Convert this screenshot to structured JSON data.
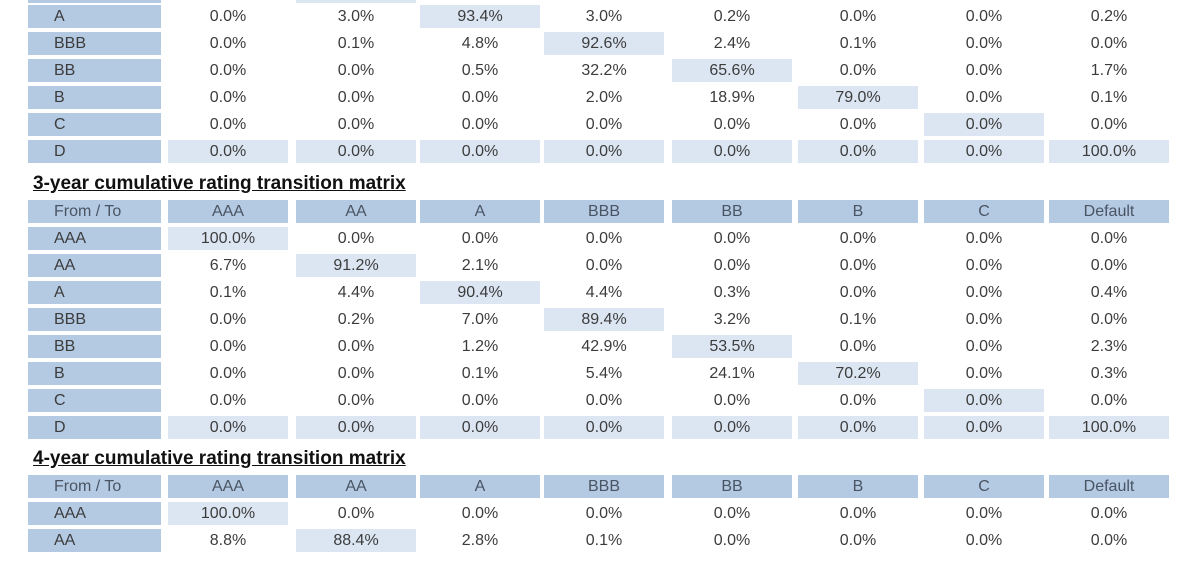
{
  "colors": {
    "header_bg": "#b4c9e2",
    "diagonal_bg": "#dce6f2",
    "text": "#3c3c3c",
    "title": "#111111"
  },
  "matrix2_partial": {
    "rows": [
      {
        "label": "A",
        "values": [
          "0.0%",
          "3.0%",
          "93.4%",
          "3.0%",
          "0.2%",
          "0.0%",
          "0.0%",
          "0.2%"
        ],
        "diag": 2
      },
      {
        "label": "BBB",
        "values": [
          "0.0%",
          "0.1%",
          "4.8%",
          "92.6%",
          "2.4%",
          "0.1%",
          "0.0%",
          "0.0%"
        ],
        "diag": 3
      },
      {
        "label": "BB",
        "values": [
          "0.0%",
          "0.0%",
          "0.5%",
          "32.2%",
          "65.6%",
          "0.0%",
          "0.0%",
          "1.7%"
        ],
        "diag": 4
      },
      {
        "label": "B",
        "values": [
          "0.0%",
          "0.0%",
          "0.0%",
          "2.0%",
          "18.9%",
          "79.0%",
          "0.0%",
          "0.1%"
        ],
        "diag": 5
      },
      {
        "label": "C",
        "values": [
          "0.0%",
          "0.0%",
          "0.0%",
          "0.0%",
          "0.0%",
          "0.0%",
          "0.0%",
          "0.0%"
        ],
        "diag": 6
      },
      {
        "label": "D",
        "values": [
          "0.0%",
          "0.0%",
          "0.0%",
          "0.0%",
          "0.0%",
          "0.0%",
          "0.0%",
          "100.0%"
        ],
        "diag": 7
      }
    ]
  },
  "matrix3": {
    "title": "3-year cumulative rating transition matrix",
    "headers": [
      "From / To",
      "AAA",
      "AA",
      "A",
      "BBB",
      "BB",
      "B",
      "C",
      "Default"
    ],
    "rows": [
      {
        "label": "AAA",
        "values": [
          "100.0%",
          "0.0%",
          "0.0%",
          "0.0%",
          "0.0%",
          "0.0%",
          "0.0%",
          "0.0%"
        ],
        "diag": 0
      },
      {
        "label": "AA",
        "values": [
          "6.7%",
          "91.2%",
          "2.1%",
          "0.0%",
          "0.0%",
          "0.0%",
          "0.0%",
          "0.0%"
        ],
        "diag": 1
      },
      {
        "label": "A",
        "values": [
          "0.1%",
          "4.4%",
          "90.4%",
          "4.4%",
          "0.3%",
          "0.0%",
          "0.0%",
          "0.4%"
        ],
        "diag": 2
      },
      {
        "label": "BBB",
        "values": [
          "0.0%",
          "0.2%",
          "7.0%",
          "89.4%",
          "3.2%",
          "0.1%",
          "0.0%",
          "0.0%"
        ],
        "diag": 3
      },
      {
        "label": "BB",
        "values": [
          "0.0%",
          "0.0%",
          "1.2%",
          "42.9%",
          "53.5%",
          "0.0%",
          "0.0%",
          "2.3%"
        ],
        "diag": 4
      },
      {
        "label": "B",
        "values": [
          "0.0%",
          "0.0%",
          "0.1%",
          "5.4%",
          "24.1%",
          "70.2%",
          "0.0%",
          "0.3%"
        ],
        "diag": 5
      },
      {
        "label": "C",
        "values": [
          "0.0%",
          "0.0%",
          "0.0%",
          "0.0%",
          "0.0%",
          "0.0%",
          "0.0%",
          "0.0%"
        ],
        "diag": 6
      },
      {
        "label": "D",
        "values": [
          "0.0%",
          "0.0%",
          "0.0%",
          "0.0%",
          "0.0%",
          "0.0%",
          "0.0%",
          "100.0%"
        ],
        "diag": 7
      }
    ]
  },
  "matrix4": {
    "title": "4-year cumulative rating transition matrix",
    "headers": [
      "From / To",
      "AAA",
      "AA",
      "A",
      "BBB",
      "BB",
      "B",
      "C",
      "Default"
    ],
    "rows": [
      {
        "label": "AAA",
        "values": [
          "100.0%",
          "0.0%",
          "0.0%",
          "0.0%",
          "0.0%",
          "0.0%",
          "0.0%",
          "0.0%"
        ],
        "diag": 0
      },
      {
        "label": "AA",
        "values": [
          "8.8%",
          "88.4%",
          "2.8%",
          "0.1%",
          "0.0%",
          "0.0%",
          "0.0%",
          "0.0%"
        ],
        "diag": 1
      }
    ]
  }
}
